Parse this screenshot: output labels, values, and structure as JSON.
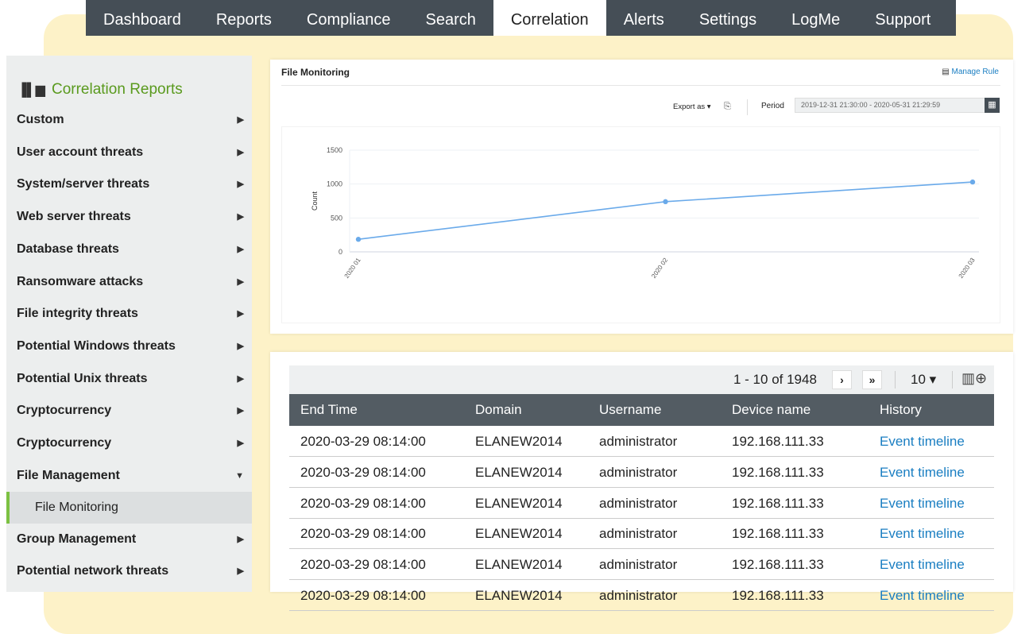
{
  "nav": {
    "tabs": [
      "Dashboard",
      "Reports",
      "Compliance",
      "Search",
      "Correlation",
      "Alerts",
      "Settings",
      "LogMe",
      "Support"
    ],
    "active": "Correlation"
  },
  "sidebar": {
    "title": "Correlation Reports",
    "items": [
      {
        "label": "Custom",
        "state": "collapsed"
      },
      {
        "label": "User account threats",
        "state": "collapsed"
      },
      {
        "label": "System/server threats",
        "state": "collapsed"
      },
      {
        "label": "Web server threats",
        "state": "collapsed"
      },
      {
        "label": "Database threats",
        "state": "collapsed"
      },
      {
        "label": "Ransomware attacks",
        "state": "collapsed"
      },
      {
        "label": "File integrity threats",
        "state": "collapsed"
      },
      {
        "label": "Potential Windows threats",
        "state": "collapsed"
      },
      {
        "label": "Potential Unix threats",
        "state": "collapsed"
      },
      {
        "label": "Cryptocurrency",
        "state": "collapsed"
      },
      {
        "label": "Cryptocurrency",
        "state": "collapsed"
      },
      {
        "label": "File Management",
        "state": "expanded"
      },
      {
        "label": "File Monitoring",
        "state": "selected-sub"
      },
      {
        "label": "Group Management",
        "state": "collapsed"
      },
      {
        "label": "Potential network threats",
        "state": "collapsed"
      }
    ]
  },
  "report": {
    "title": "File Monitoring",
    "manage_rule": "Manage Rule",
    "export_as": "Export as",
    "period_label": "Period",
    "period_value": "2019-12-31 21:30:00 - 2020-05-31 21:29:59"
  },
  "chart_data": {
    "type": "line",
    "categories": [
      "2020 01",
      "2020 02",
      "2020 03"
    ],
    "values": [
      185,
      740,
      1030
    ],
    "ylabel": "Count",
    "ylim": [
      0,
      1500
    ],
    "yticks": [
      0,
      500,
      1000,
      1500
    ],
    "grid": true,
    "color": "#6aaaea"
  },
  "table": {
    "pager": "1 - 10 of 1948",
    "page_size": "10",
    "columns": [
      "End Time",
      "Domain",
      "Username",
      "Device name",
      "History"
    ],
    "rows": [
      [
        "2020-03-29 08:14:00",
        "ELANEW2014",
        "administrator",
        "192.168.111.33",
        "Event timeline"
      ],
      [
        "2020-03-29 08:14:00",
        "ELANEW2014",
        "administrator",
        "192.168.111.33",
        "Event timeline"
      ],
      [
        "2020-03-29 08:14:00",
        "ELANEW2014",
        "administrator",
        "192.168.111.33",
        "Event timeline"
      ],
      [
        "2020-03-29 08:14:00",
        "ELANEW2014",
        "administrator",
        "192.168.111.33",
        "Event timeline"
      ],
      [
        "2020-03-29 08:14:00",
        "ELANEW2014",
        "administrator",
        "192.168.111.33",
        "Event timeline"
      ],
      [
        "2020-03-29 08:14:00",
        "ELANEW2014",
        "administrator",
        "192.168.111.33",
        "Event timeline"
      ]
    ]
  }
}
